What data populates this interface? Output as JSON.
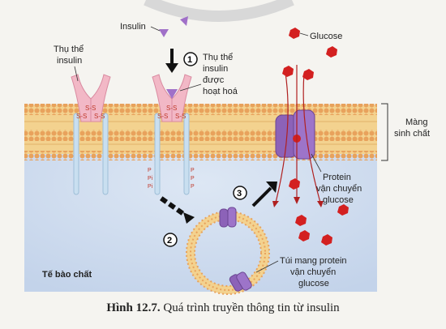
{
  "labels": {
    "insulin": "Insulin",
    "receptor": "Thụ thể insulin",
    "receptor_line1": "Thụ thể",
    "receptor_line2": "insulin",
    "activated_line1": "Thụ thể",
    "activated_line2": "insulin",
    "activated_line3": "được",
    "activated_line4": "hoạt hoá",
    "glucose": "Glucose",
    "membrane_line1": "Màng",
    "membrane_line2": "sinh chất",
    "protein_line1": "Protein",
    "protein_line2": "vận chuyển",
    "protein_line3": "glucose",
    "vesicle_line1": "Túi mang protein",
    "vesicle_line2": "vận chuyển",
    "vesicle_line3": "glucose",
    "cytoplasm": "Tế bào chất",
    "ss": "S-S",
    "s": "S",
    "p": "P",
    "pi": "Pi"
  },
  "steps": [
    "1",
    "2",
    "3"
  ],
  "caption": {
    "number": "Hình 12.7.",
    "text": " Quá trình truyền thông tin từ insulin"
  },
  "colors": {
    "background": "#f5f4f0",
    "cytoplasm": "#cfdcee",
    "lipid_head": "#e8a25c",
    "lipid_tail": "#f3d28f",
    "receptor": "#f2b8c6",
    "receptor_stem": "#c9dff0",
    "insulin": "#a070c8",
    "glucose": "#d32020",
    "transporter": "#8c62b8",
    "arrow": "#111111"
  }
}
